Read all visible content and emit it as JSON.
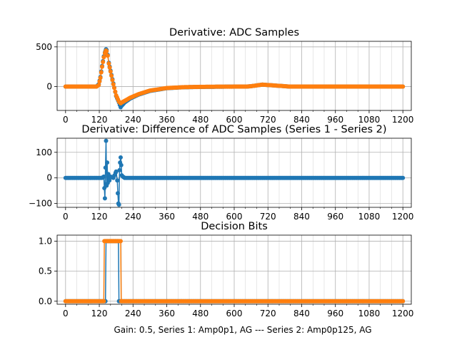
{
  "figure": {
    "xlabel": "Gain: 0.5, Series 1: Amp0p1, AG --- Series 2: Amp0p125, AG"
  },
  "colors": {
    "series1": "#1f77b4",
    "series2": "#ff7f0e",
    "grid": "#b0b0b0"
  },
  "chart_data": [
    {
      "type": "scatter",
      "title": "Derivative: ADC Samples",
      "xlim": [
        -30,
        1230
      ],
      "ylim": [
        -300,
        570
      ],
      "xticks": [
        0,
        120,
        240,
        360,
        480,
        600,
        720,
        840,
        960,
        1080,
        1200
      ],
      "xtick_labels": [
        "0",
        "120",
        "240",
        "360",
        "480",
        "600",
        "720",
        "840",
        "960",
        "1080",
        "1200"
      ],
      "yticks": [
        -500,
        0,
        500
      ],
      "ytick_labels": [
        "",
        "0",
        "500"
      ],
      "grid": true,
      "series": [
        {
          "name": "Series 1",
          "color": "#1f77b4",
          "x": [
            0,
            100,
            110,
            118,
            124,
            130,
            136,
            140,
            142,
            144,
            146,
            150,
            154,
            160,
            170,
            180,
            190,
            196,
            200,
            210,
            230,
            260,
            300,
            360,
            420,
            480,
            540,
            600,
            640,
            660,
            680,
            700,
            720,
            760,
            800,
            840,
            900,
            1000,
            1100,
            1200
          ],
          "y": [
            0,
            0,
            0,
            30,
            120,
            260,
            380,
            430,
            450,
            470,
            460,
            400,
            300,
            200,
            40,
            -120,
            -200,
            -260,
            -240,
            -200,
            -150,
            -100,
            -55,
            -20,
            -8,
            -4,
            -2,
            0,
            0,
            5,
            15,
            25,
            20,
            10,
            0,
            0,
            0,
            0,
            0,
            0
          ]
        },
        {
          "name": "Series 2",
          "color": "#ff7f0e",
          "x": [
            0,
            100,
            110,
            118,
            124,
            130,
            136,
            140,
            142,
            144,
            146,
            150,
            154,
            160,
            170,
            180,
            190,
            196,
            200,
            210,
            230,
            260,
            300,
            360,
            420,
            480,
            540,
            600,
            640,
            660,
            680,
            700,
            720,
            760,
            800,
            840,
            900,
            1000,
            1100,
            1200
          ],
          "y": [
            0,
            0,
            0,
            20,
            110,
            250,
            370,
            420,
            440,
            455,
            445,
            390,
            290,
            190,
            30,
            -110,
            -190,
            -210,
            -200,
            -180,
            -140,
            -95,
            -50,
            -18,
            -7,
            -3,
            -1,
            0,
            0,
            5,
            15,
            25,
            20,
            10,
            0,
            0,
            0,
            0,
            0,
            0
          ]
        }
      ]
    },
    {
      "type": "scatter",
      "title": "Derivative: Difference of ADC Samples (Series 1 - Series 2)",
      "xlim": [
        -30,
        1230
      ],
      "ylim": [
        -115,
        155
      ],
      "xticks": [
        0,
        120,
        240,
        360,
        480,
        600,
        720,
        840,
        960,
        1080,
        1200
      ],
      "xtick_labels": [
        "0",
        "120",
        "240",
        "360",
        "480",
        "600",
        "720",
        "840",
        "960",
        "1080",
        "1200"
      ],
      "yticks": [
        -100,
        0,
        100
      ],
      "ytick_labels": [
        "−100",
        "0",
        "100"
      ],
      "grid": true,
      "series": [
        {
          "name": "Difference",
          "color": "#1f77b4",
          "x": [
            0,
            100,
            130,
            136,
            138,
            140,
            142,
            144,
            146,
            148,
            150,
            152,
            156,
            160,
            170,
            178,
            180,
            184,
            186,
            188,
            190,
            192,
            194,
            196,
            198,
            200,
            204,
            210,
            240,
            300,
            400,
            500,
            600,
            700,
            800,
            900,
            1000,
            1100,
            1200
          ],
          "y": [
            0,
            0,
            0,
            5,
            -40,
            -80,
            40,
            145,
            -30,
            60,
            -20,
            15,
            -10,
            5,
            0,
            20,
            25,
            -10,
            -60,
            -100,
            -105,
            30,
            60,
            80,
            50,
            10,
            5,
            0,
            0,
            0,
            0,
            0,
            0,
            0,
            0,
            0,
            0,
            0,
            0
          ]
        }
      ]
    },
    {
      "type": "line",
      "title": "Decision Bits",
      "xlim": [
        -30,
        1230
      ],
      "ylim": [
        -0.05,
        1.1
      ],
      "xticks": [
        0,
        120,
        240,
        360,
        480,
        600,
        720,
        840,
        960,
        1080,
        1200
      ],
      "xtick_labels": [
        "0",
        "120",
        "240",
        "360",
        "480",
        "600",
        "720",
        "840",
        "960",
        "1080",
        "1200"
      ],
      "yticks": [
        0.0,
        0.5,
        1.0
      ],
      "ytick_labels": [
        "0.0",
        "0.5",
        "1.0"
      ],
      "grid": true,
      "series": [
        {
          "name": "Series 1",
          "color": "#1f77b4",
          "x": [
            0,
            142,
            144,
            188,
            190,
            1200
          ],
          "y": [
            0,
            0,
            1,
            1,
            0,
            0
          ]
        },
        {
          "name": "Series 2",
          "color": "#ff7f0e",
          "x": [
            0,
            136,
            138,
            196,
            198,
            1200
          ],
          "y": [
            0,
            0,
            1,
            1,
            0,
            0
          ]
        }
      ]
    }
  ]
}
